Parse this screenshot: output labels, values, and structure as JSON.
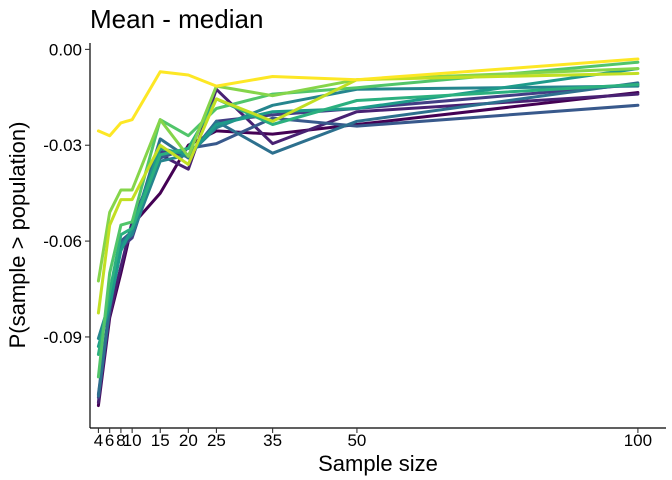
{
  "chart_data": {
    "type": "line",
    "title": "Mean - median",
    "xlabel": "Sample size",
    "ylabel": "P(sample > population)",
    "x": [
      4,
      6,
      8,
      10,
      15,
      20,
      25,
      35,
      50,
      100
    ],
    "x_ticks": [
      4,
      6,
      8,
      10,
      15,
      20,
      25,
      35,
      50,
      100
    ],
    "y_ticks": [
      0.0,
      -0.03,
      -0.06,
      -0.09
    ],
    "y_tick_labels": [
      "0.00",
      "-0.03",
      "-0.06",
      "-0.09"
    ],
    "xlim": [
      2.5,
      105
    ],
    "ylim": [
      -0.1185,
      0.002
    ],
    "grid": false,
    "legend": "none",
    "series": [
      {
        "color": "#440154",
        "values": [
          -0.1115,
          -0.084,
          -0.07,
          -0.055,
          -0.045,
          -0.03,
          -0.0255,
          -0.0265,
          -0.0235,
          -0.0135
        ]
      },
      {
        "color": "#482173",
        "values": [
          -0.1105,
          -0.083,
          -0.068,
          -0.054,
          -0.033,
          -0.0375,
          -0.0125,
          -0.0295,
          -0.0195,
          -0.014
        ]
      },
      {
        "color": "#433E85",
        "values": [
          -0.109,
          -0.081,
          -0.062,
          -0.059,
          -0.032,
          -0.0335,
          -0.0225,
          -0.0205,
          -0.0185,
          -0.011
        ]
      },
      {
        "color": "#38598C",
        "values": [
          -0.108,
          -0.08,
          -0.06,
          -0.057,
          -0.034,
          -0.031,
          -0.0295,
          -0.0215,
          -0.024,
          -0.0175
        ]
      },
      {
        "color": "#2D708E",
        "values": [
          -0.1085,
          -0.081,
          -0.061,
          -0.057,
          -0.028,
          -0.034,
          -0.0225,
          -0.0325,
          -0.0225,
          -0.0105
        ]
      },
      {
        "color": "#25858E",
        "values": [
          -0.0905,
          -0.079,
          -0.061,
          -0.058,
          -0.035,
          -0.033,
          -0.0245,
          -0.0175,
          -0.0125,
          -0.0115
        ]
      },
      {
        "color": "#1E9B8A",
        "values": [
          -0.093,
          -0.08,
          -0.063,
          -0.056,
          -0.031,
          -0.033,
          -0.0235,
          -0.0195,
          -0.0185,
          -0.006
        ]
      },
      {
        "color": "#2BB07F",
        "values": [
          -0.0955,
          -0.076,
          -0.058,
          -0.056,
          -0.033,
          -0.031,
          -0.0155,
          -0.0235,
          -0.016,
          -0.011
        ]
      },
      {
        "color": "#51C56A",
        "values": [
          -0.1025,
          -0.07,
          -0.055,
          -0.054,
          -0.022,
          -0.027,
          -0.0185,
          -0.014,
          -0.012,
          -0.004
        ]
      },
      {
        "color": "#85D54A",
        "values": [
          -0.0725,
          -0.051,
          -0.044,
          -0.044,
          -0.022,
          -0.0335,
          -0.0115,
          -0.0145,
          -0.0095,
          -0.006
        ]
      },
      {
        "color": "#C2DF23",
        "values": [
          -0.0825,
          -0.055,
          -0.047,
          -0.047,
          -0.03,
          -0.036,
          -0.0155,
          -0.0225,
          -0.0095,
          -0.0075
        ]
      },
      {
        "color": "#FDE725",
        "values": [
          -0.0255,
          -0.027,
          -0.023,
          -0.022,
          -0.007,
          -0.008,
          -0.0115,
          -0.0085,
          -0.0095,
          -0.003
        ]
      }
    ]
  }
}
